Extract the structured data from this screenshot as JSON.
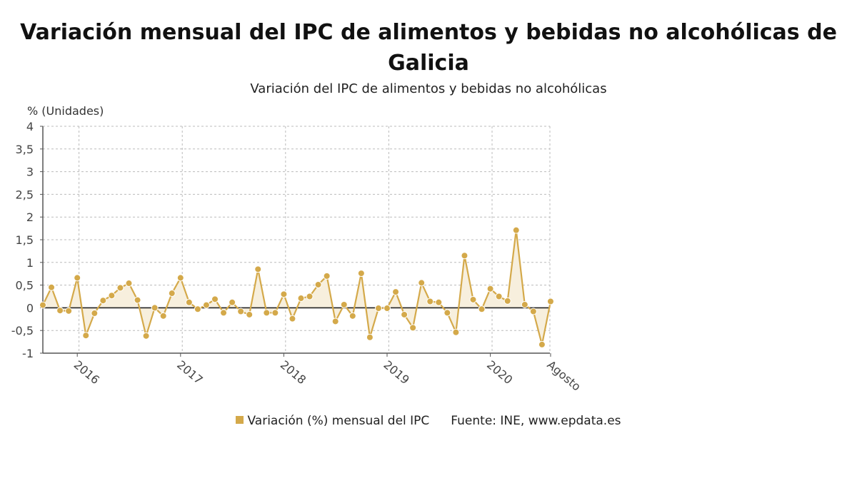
{
  "title": "Variación mensual del IPC de alimentos y bebidas no alcohólicas de Galicia",
  "subtitle": "Variación del IPC de alimentos y bebidas no alcohólicas",
  "legend_label": "Variación (%) mensual del IPC",
  "source": "Fuente: INE, www.epdata.es",
  "colors": {
    "series": "#d4a94a",
    "fill": "#f7efdd",
    "zero_line": "#222222",
    "grid": "#bbbbbb"
  },
  "chart_data": {
    "type": "line",
    "ylabel": "% (Unidades)",
    "ylim": [
      -1,
      4
    ],
    "yticks": [
      "4",
      "3,5",
      "3",
      "2,5",
      "2",
      "1,5",
      "1",
      "0,5",
      "0",
      "-0,5",
      "-1"
    ],
    "xtick_labels": [
      "2016",
      "2017",
      "2018",
      "2019",
      "2020",
      "Agosto"
    ],
    "grid": true,
    "series": [
      {
        "name": "Variación (%) mensual del IPC",
        "x_start": "Septiembre 2015",
        "values": [
          0.06,
          0.45,
          -0.06,
          -0.07,
          0.66,
          -0.61,
          -0.12,
          0.16,
          0.27,
          0.44,
          0.54,
          0.17,
          -0.62,
          0.0,
          -0.18,
          0.32,
          0.66,
          0.12,
          -0.03,
          0.06,
          0.19,
          -0.11,
          0.12,
          -0.08,
          -0.15,
          0.85,
          -0.11,
          -0.11,
          0.3,
          -0.24,
          0.21,
          0.25,
          0.51,
          0.7,
          -0.3,
          0.07,
          -0.18,
          0.76,
          -0.65,
          -0.01,
          -0.01,
          0.35,
          -0.15,
          -0.44,
          0.55,
          0.14,
          0.12,
          -0.11,
          -0.54,
          1.15,
          0.18,
          -0.03,
          0.42,
          0.25,
          0.15,
          1.71,
          0.07,
          -0.08,
          -0.81,
          0.14
        ]
      }
    ]
  }
}
